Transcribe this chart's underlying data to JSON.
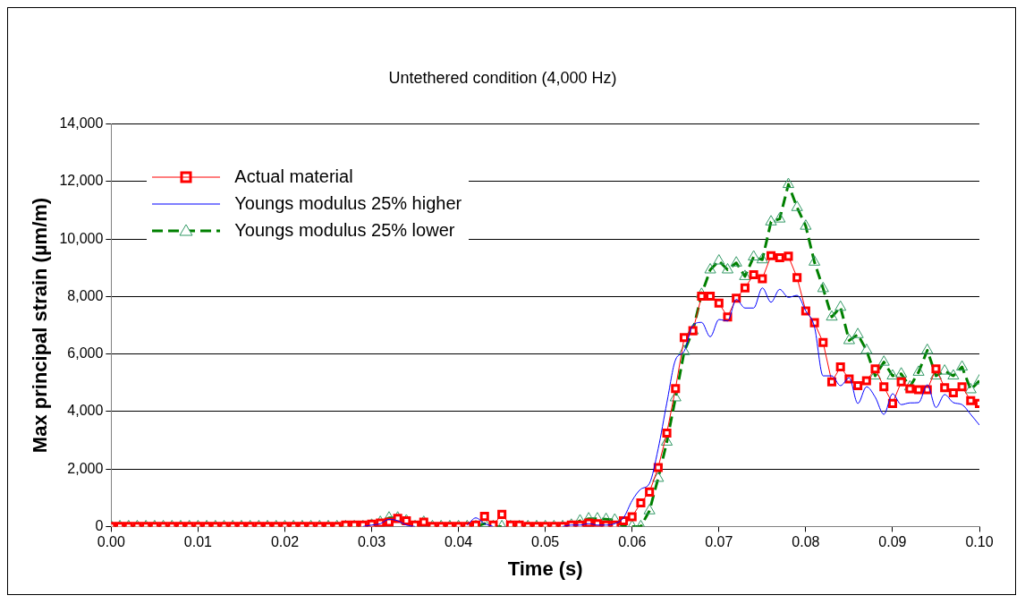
{
  "chart_data": {
    "type": "line",
    "title": "Untethered condition (4,000 Hz)",
    "xlabel": "Time (s)",
    "ylabel": "Max principal strain (µm/m)",
    "x": [
      0,
      0.001,
      0.002,
      0.003,
      0.004,
      0.005,
      0.006,
      0.007,
      0.008,
      0.009,
      0.01,
      0.011,
      0.012,
      0.013,
      0.014,
      0.015,
      0.016,
      0.017,
      0.018,
      0.019,
      0.02,
      0.021,
      0.022,
      0.023,
      0.024,
      0.025,
      0.026,
      0.027,
      0.028,
      0.029,
      0.03,
      0.031,
      0.032,
      0.033,
      0.034,
      0.035,
      0.036,
      0.037,
      0.038,
      0.039,
      0.04,
      0.041,
      0.042,
      0.043,
      0.044,
      0.045,
      0.046,
      0.047,
      0.048,
      0.049,
      0.05,
      0.051,
      0.052,
      0.053,
      0.054,
      0.055,
      0.056,
      0.057,
      0.058,
      0.059,
      0.06,
      0.061,
      0.062,
      0.063,
      0.064,
      0.065,
      0.066,
      0.067,
      0.068,
      0.069,
      0.07,
      0.071,
      0.072,
      0.073,
      0.074,
      0.075,
      0.076,
      0.077,
      0.078,
      0.079,
      0.08,
      0.081,
      0.082,
      0.083,
      0.084,
      0.085,
      0.086,
      0.087,
      0.088,
      0.089,
      0.09,
      0.091,
      0.092,
      0.093,
      0.094,
      0.095,
      0.096,
      0.097,
      0.098,
      0.099,
      0.1
    ],
    "series": [
      {
        "name": "Actual material",
        "color": "#ff0000",
        "marker": "square",
        "line_style": "solid",
        "values": [
          0,
          0,
          0,
          0,
          0,
          0,
          0,
          0,
          0,
          0,
          0,
          0,
          0,
          0,
          0,
          0,
          0,
          0,
          0,
          0,
          0,
          0,
          0,
          0,
          0,
          0,
          0,
          50,
          50,
          50,
          80,
          120,
          150,
          280,
          200,
          50,
          150,
          0,
          0,
          0,
          0,
          0,
          50,
          350,
          50,
          420,
          50,
          50,
          0,
          0,
          0,
          0,
          0,
          50,
          50,
          120,
          100,
          50,
          50,
          200,
          340,
          820,
          1200,
          2050,
          3250,
          4800,
          6570,
          6810,
          8010,
          8010,
          7770,
          7290,
          7940,
          8300,
          8760,
          8620,
          9420,
          9350,
          9400,
          8660,
          7500,
          7090,
          6400,
          5030,
          5550,
          5130,
          4900,
          5070,
          5480,
          4860,
          4280,
          5030,
          4790,
          4760,
          4760,
          5480,
          4830,
          4650,
          4860,
          4380,
          4280
        ]
      },
      {
        "name": "Youngs modulus 25% higher",
        "color": "#0000ff",
        "marker": "none",
        "line_style": "solid",
        "values": [
          null,
          null,
          null,
          null,
          null,
          null,
          null,
          null,
          null,
          null,
          null,
          null,
          null,
          null,
          null,
          null,
          null,
          null,
          null,
          null,
          null,
          null,
          null,
          null,
          null,
          null,
          null,
          null,
          null,
          0,
          50,
          100,
          250,
          200,
          50,
          0,
          null,
          null,
          null,
          null,
          null,
          50,
          300,
          100,
          0,
          null,
          null,
          null,
          null,
          null,
          null,
          null,
          0,
          50,
          50,
          100,
          50,
          50,
          100,
          300,
          900,
          1300,
          1500,
          2700,
          4300,
          5800,
          6100,
          7000,
          7100,
          6600,
          7200,
          7150,
          7900,
          7600,
          7600,
          8300,
          7800,
          8250,
          7970,
          8040,
          7500,
          6950,
          5240,
          5240,
          4900,
          5170,
          4280,
          4860,
          4500,
          3900,
          4620,
          4240,
          4300,
          4310,
          4930,
          4140,
          4590,
          4310,
          4240,
          3900,
          3530
        ]
      },
      {
        "name": "Youngs modulus 25% lower",
        "color": "#008000",
        "marker": "triangle",
        "line_style": "dashed",
        "values": [
          0,
          0,
          0,
          0,
          0,
          0,
          0,
          0,
          0,
          0,
          0,
          0,
          0,
          0,
          0,
          0,
          0,
          0,
          0,
          0,
          0,
          0,
          0,
          0,
          0,
          0,
          0,
          0,
          0,
          0,
          50,
          150,
          300,
          300,
          200,
          0,
          150,
          0,
          0,
          0,
          0,
          0,
          0,
          100,
          0,
          0,
          0,
          0,
          0,
          0,
          0,
          0,
          0,
          50,
          200,
          270,
          270,
          250,
          230,
          0,
          0,
          0,
          550,
          1680,
          2940,
          4480,
          6090,
          6810,
          8080,
          8930,
          9240,
          8930,
          9170,
          8700,
          9380,
          9280,
          10600,
          10700,
          11900,
          11100,
          10450,
          9200,
          8280,
          7290,
          7630,
          6470,
          6680,
          6130,
          5240,
          5720,
          5240,
          5310,
          4860,
          5370,
          6130,
          5240,
          5410,
          5240,
          5550,
          4760,
          5070
        ]
      }
    ],
    "xlim": [
      0,
      0.1
    ],
    "xticks": [
      {
        "value": 0,
        "label": "0.00"
      },
      {
        "value": 0.01,
        "label": "0.01"
      },
      {
        "value": 0.02,
        "label": "0.02"
      },
      {
        "value": 0.03,
        "label": "0.03"
      },
      {
        "value": 0.04,
        "label": "0.04"
      },
      {
        "value": 0.05,
        "label": "0.05"
      },
      {
        "value": 0.06,
        "label": "0.06"
      },
      {
        "value": 0.07,
        "label": "0.07"
      },
      {
        "value": 0.08,
        "label": "0.08"
      },
      {
        "value": 0.09,
        "label": "0.09"
      },
      {
        "value": 0.1,
        "label": "0.10"
      }
    ],
    "ylim": [
      0,
      14000
    ],
    "yticks": [
      0,
      {
        "value": 2000,
        "label": "2,000"
      },
      {
        "value": 4000,
        "label": "4,000"
      },
      {
        "value": 6000,
        "label": "6,000"
      },
      {
        "value": 8000,
        "label": "8,000"
      },
      {
        "value": 10000,
        "label": "10,000"
      },
      {
        "value": 12000,
        "label": "12,000"
      },
      {
        "value": 14000,
        "label": "14,000"
      }
    ],
    "grid": "y",
    "legend": "top left"
  }
}
